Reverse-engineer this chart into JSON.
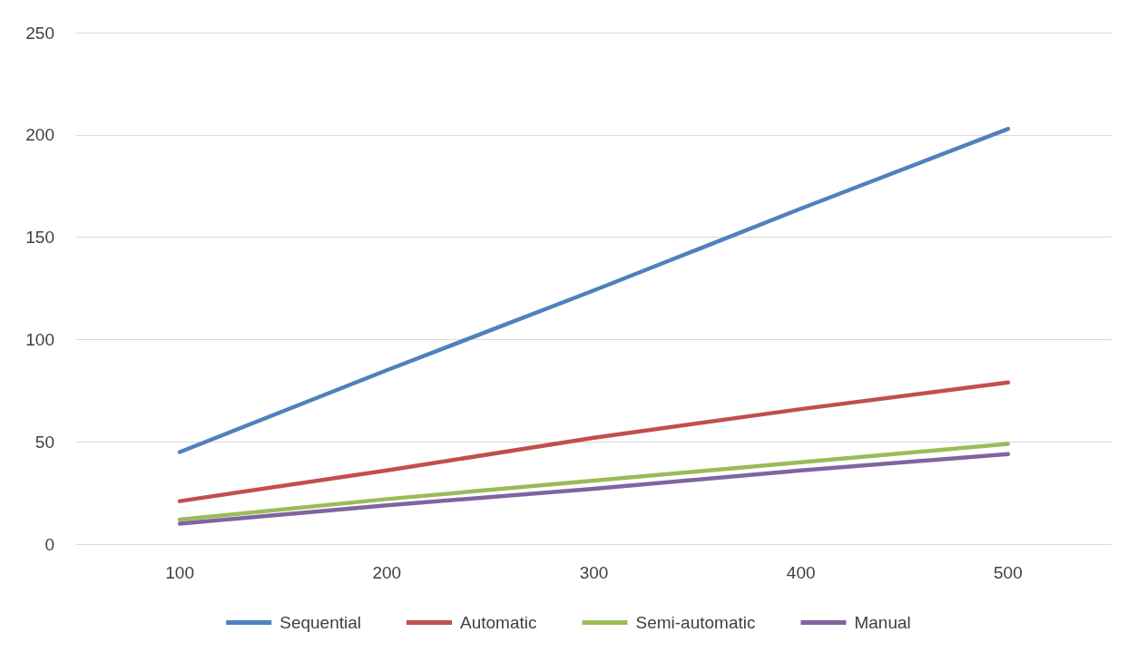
{
  "chart_data": {
    "type": "line",
    "categories": [
      "100",
      "200",
      "300",
      "400",
      "500"
    ],
    "series": [
      {
        "name": "Sequential",
        "color": "#4f81bd",
        "values": [
          45,
          85,
          124,
          164,
          203
        ]
      },
      {
        "name": "Automatic",
        "color": "#c0504d",
        "values": [
          21,
          36,
          52,
          66,
          79
        ]
      },
      {
        "name": "Semi-automatic",
        "color": "#9bbb59",
        "values": [
          12,
          22,
          31,
          40,
          49
        ]
      },
      {
        "name": "Manual",
        "color": "#8064a2",
        "values": [
          10,
          19,
          27,
          36,
          44
        ]
      }
    ],
    "ylim": [
      0,
      250
    ],
    "yticks": [
      0,
      50,
      100,
      150,
      200,
      250
    ],
    "grid": "y",
    "legend": "bottom",
    "marker": "none",
    "line_style": "solid"
  }
}
